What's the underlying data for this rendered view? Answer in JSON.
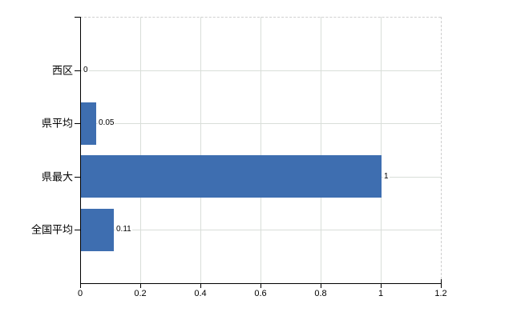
{
  "colors": {
    "bar": "#3e6eb0",
    "grid": "#d9ded9",
    "dashed_border": "#cfcfcf",
    "axis": "#000000",
    "text": "#000000",
    "background": "#ffffff"
  },
  "chart_data": {
    "type": "bar",
    "orientation": "horizontal",
    "title": "",
    "xlabel": "",
    "ylabel": "",
    "categories": [
      "西区",
      "県平均",
      "県最大",
      "全国平均"
    ],
    "values": [
      0,
      0.05,
      1,
      0.11
    ],
    "value_labels": [
      "0",
      "0.05",
      "1",
      "0.11"
    ],
    "x_ticks": [
      0,
      0.2,
      0.4,
      0.6,
      0.8,
      1,
      1.2
    ],
    "x_tick_labels": [
      "0",
      "0.2",
      "0.4",
      "0.6",
      "0.8",
      "1",
      "1.2"
    ],
    "xlim": [
      0,
      1.2
    ],
    "grid": true,
    "legend": false
  }
}
